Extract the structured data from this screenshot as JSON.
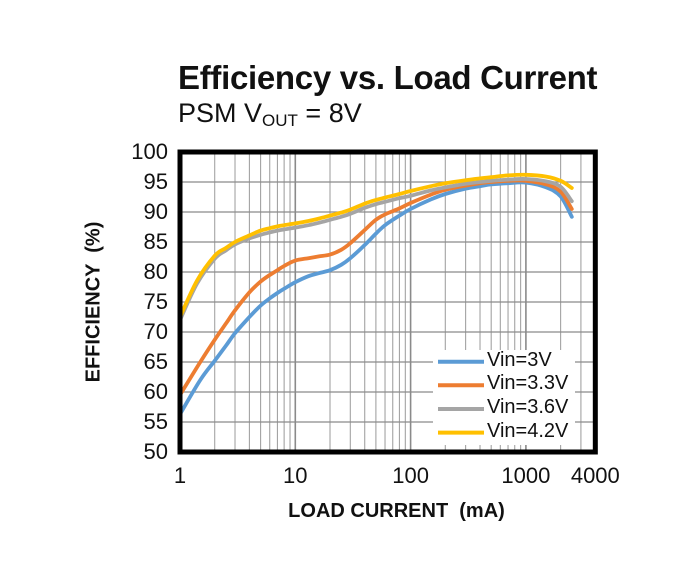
{
  "chart_data": {
    "type": "line",
    "title": "Efficiency vs. Load Current",
    "subtitle": {
      "prefix": "PSM V",
      "sub": "OUT",
      "suffix": " = 8V"
    },
    "xlabel": "LOAD CURRENT  (mA)",
    "ylabel": "EFFICIENCY  (%)",
    "x_scale": "log",
    "xlim": [
      1,
      4000
    ],
    "ylim": [
      50,
      100
    ],
    "x_ticks": [
      1,
      10,
      100,
      1000,
      4000
    ],
    "y_ticks": [
      50,
      55,
      60,
      65,
      70,
      75,
      80,
      85,
      90,
      95,
      100
    ],
    "grid": {
      "horizontal_step": 5,
      "vertical_minor_log": true
    },
    "legend_position": "inside-bottom-right",
    "series": [
      {
        "name": "Vin=3V",
        "color": "#5B9BD5",
        "points": [
          [
            1,
            56.3
          ],
          [
            1.5,
            62
          ],
          [
            2,
            65.2
          ],
          [
            2.5,
            67.7
          ],
          [
            3,
            69.8
          ],
          [
            4,
            72.5
          ],
          [
            5,
            74.4
          ],
          [
            6,
            75.6
          ],
          [
            7,
            76.5
          ],
          [
            8,
            77.2
          ],
          [
            10,
            78.3
          ],
          [
            13,
            79.3
          ],
          [
            16,
            79.8
          ],
          [
            20,
            80.3
          ],
          [
            25,
            81.2
          ],
          [
            30,
            82.3
          ],
          [
            40,
            84.5
          ],
          [
            50,
            86.4
          ],
          [
            60,
            87.8
          ],
          [
            80,
            89.4
          ],
          [
            100,
            90.5
          ],
          [
            150,
            92.1
          ],
          [
            200,
            93
          ],
          [
            300,
            93.9
          ],
          [
            400,
            94.3
          ],
          [
            500,
            94.6
          ],
          [
            700,
            94.8
          ],
          [
            1000,
            94.9
          ],
          [
            1500,
            94.1
          ],
          [
            2000,
            92.6
          ],
          [
            2500,
            89.2
          ]
        ]
      },
      {
        "name": "Vin=3.3V",
        "color": "#ED7D31",
        "points": [
          [
            1,
            59.5
          ],
          [
            1.5,
            65
          ],
          [
            2,
            68.7
          ],
          [
            2.5,
            71.4
          ],
          [
            3,
            73.6
          ],
          [
            4,
            76.6
          ],
          [
            5,
            78.4
          ],
          [
            6,
            79.5
          ],
          [
            7,
            80.3
          ],
          [
            8,
            81
          ],
          [
            10,
            81.9
          ],
          [
            13,
            82.3
          ],
          [
            16,
            82.6
          ],
          [
            20,
            82.9
          ],
          [
            25,
            83.7
          ],
          [
            30,
            84.8
          ],
          [
            40,
            87
          ],
          [
            50,
            88.7
          ],
          [
            60,
            89.6
          ],
          [
            80,
            90.6
          ],
          [
            100,
            91.5
          ],
          [
            150,
            92.9
          ],
          [
            200,
            93.7
          ],
          [
            300,
            94.4
          ],
          [
            400,
            94.8
          ],
          [
            500,
            95
          ],
          [
            700,
            95.2
          ],
          [
            1000,
            95.2
          ],
          [
            1500,
            94.6
          ],
          [
            2000,
            93.4
          ],
          [
            2500,
            90.5
          ]
        ]
      },
      {
        "name": "Vin=3.6V",
        "color": "#A5A5A5",
        "points": [
          [
            1,
            72
          ],
          [
            1.4,
            78
          ],
          [
            2,
            82.2
          ],
          [
            2.5,
            83.6
          ],
          [
            3,
            84.6
          ],
          [
            4,
            85.6
          ],
          [
            5,
            86.2
          ],
          [
            6,
            86.6
          ],
          [
            7,
            86.9
          ],
          [
            8,
            87.1
          ],
          [
            10,
            87.4
          ],
          [
            13,
            87.8
          ],
          [
            16,
            88.2
          ],
          [
            20,
            88.7
          ],
          [
            25,
            89.2
          ],
          [
            30,
            89.7
          ],
          [
            40,
            90.7
          ],
          [
            50,
            91.3
          ],
          [
            60,
            91.7
          ],
          [
            80,
            92.3
          ],
          [
            100,
            92.7
          ],
          [
            150,
            93.6
          ],
          [
            200,
            94.1
          ],
          [
            300,
            94.7
          ],
          [
            400,
            95
          ],
          [
            500,
            95.2
          ],
          [
            700,
            95.4
          ],
          [
            1000,
            95.5
          ],
          [
            1500,
            95.1
          ],
          [
            2000,
            94.2
          ],
          [
            2500,
            91.8
          ]
        ]
      },
      {
        "name": "Vin=4.2V",
        "color": "#FFC000",
        "points": [
          [
            1,
            72.5
          ],
          [
            1.4,
            78.5
          ],
          [
            2,
            82.7
          ],
          [
            2.5,
            84
          ],
          [
            3,
            85
          ],
          [
            4,
            86.1
          ],
          [
            5,
            86.9
          ],
          [
            6,
            87.3
          ],
          [
            7,
            87.6
          ],
          [
            8,
            87.8
          ],
          [
            10,
            88.1
          ],
          [
            13,
            88.5
          ],
          [
            16,
            88.9
          ],
          [
            20,
            89.4
          ],
          [
            25,
            89.9
          ],
          [
            30,
            90.4
          ],
          [
            40,
            91.4
          ],
          [
            50,
            92
          ],
          [
            60,
            92.4
          ],
          [
            80,
            93
          ],
          [
            100,
            93.5
          ],
          [
            150,
            94.3
          ],
          [
            200,
            94.8
          ],
          [
            300,
            95.3
          ],
          [
            400,
            95.6
          ],
          [
            500,
            95.8
          ],
          [
            700,
            96.1
          ],
          [
            1000,
            96.2
          ],
          [
            1500,
            95.9
          ],
          [
            2000,
            95.2
          ],
          [
            2500,
            94
          ]
        ]
      }
    ],
    "style": {
      "frame_color": "#000000",
      "grid_color_minor": "#a3a3a3",
      "grid_color_major": "#8a8a8a",
      "background": "#ffffff"
    }
  }
}
